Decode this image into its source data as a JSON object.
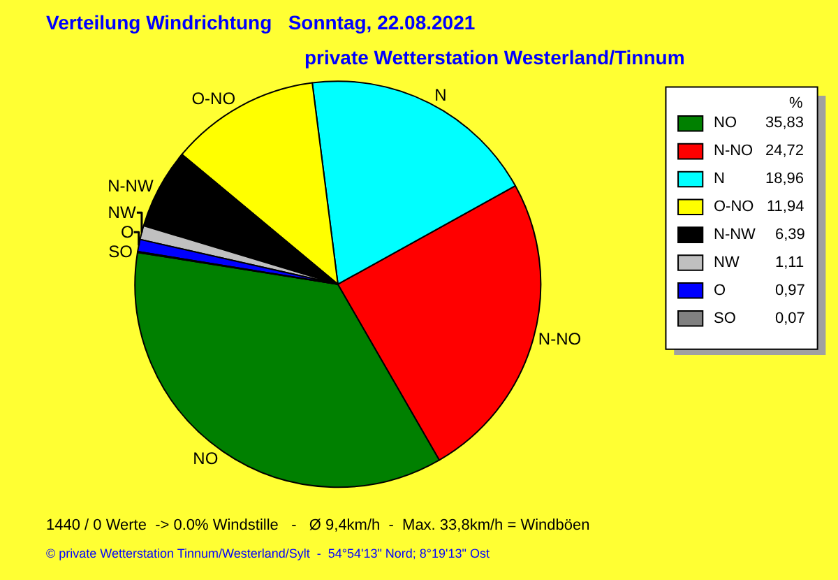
{
  "chart_data": {
    "type": "pie",
    "title": "Verteilung Windrichtung   Sonntag, 22.08.2021",
    "subtitle": "private Wetterstation Westerland/Tinnum",
    "legend_title": "%",
    "categories": [
      "NO",
      "N-NO",
      "N",
      "O-NO",
      "N-NW",
      "NW",
      "O",
      "SO"
    ],
    "values": [
      35.83,
      24.72,
      18.96,
      11.94,
      6.39,
      1.11,
      0.97,
      0.07
    ],
    "value_labels": [
      "35,83",
      "24,72",
      "18,96",
      "11,94",
      "6,39",
      "1,11",
      "0,97",
      "0,07"
    ],
    "colors": [
      "#008000",
      "#ff0000",
      "#00ffff",
      "#ffff00",
      "#000000",
      "#c0c0c0",
      "#0000ff",
      "#808080"
    ],
    "legend": "right",
    "annotations": [
      "1440 / 0 Werte  -> 0.0% Windstille   -   Ø 9,4km/h  -  Max. 33,8km/h = Windböen",
      "© private Wetterstation Tinnum/Westerland/Sylt  -  54°54'13\" Nord; 8°19'13\" Ost"
    ]
  }
}
